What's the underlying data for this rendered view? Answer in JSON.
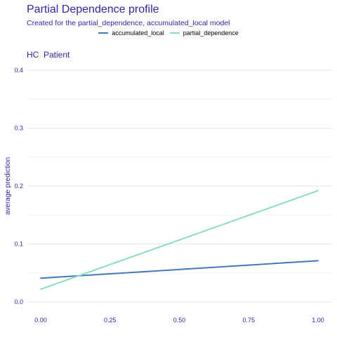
{
  "chart_data": {
    "type": "line",
    "title": "Partial Dependence profile",
    "subtitle": "Created for the partial_dependence, accumulated_local model",
    "panel_title": "HC  Patient",
    "xlabel": "",
    "ylabel": "average prediction",
    "xlim": [
      0,
      1
    ],
    "ylim": [
      0,
      0.4
    ],
    "x_ticks": [
      "0.00",
      "0.25",
      "0.50",
      "0.75",
      "1.00"
    ],
    "y_ticks": [
      "0.0",
      "0.1",
      "0.2",
      "0.3",
      "0.4"
    ],
    "grid": true,
    "legend_position": "top",
    "series": [
      {
        "name": "accumulated_local",
        "color": "#4378bf",
        "x": [
          0,
          1
        ],
        "y": [
          0.041,
          0.071
        ]
      },
      {
        "name": "partial_dependence",
        "color": "#8bdcbe",
        "x": [
          0,
          1
        ],
        "y": [
          0.022,
          0.192
        ]
      }
    ]
  }
}
